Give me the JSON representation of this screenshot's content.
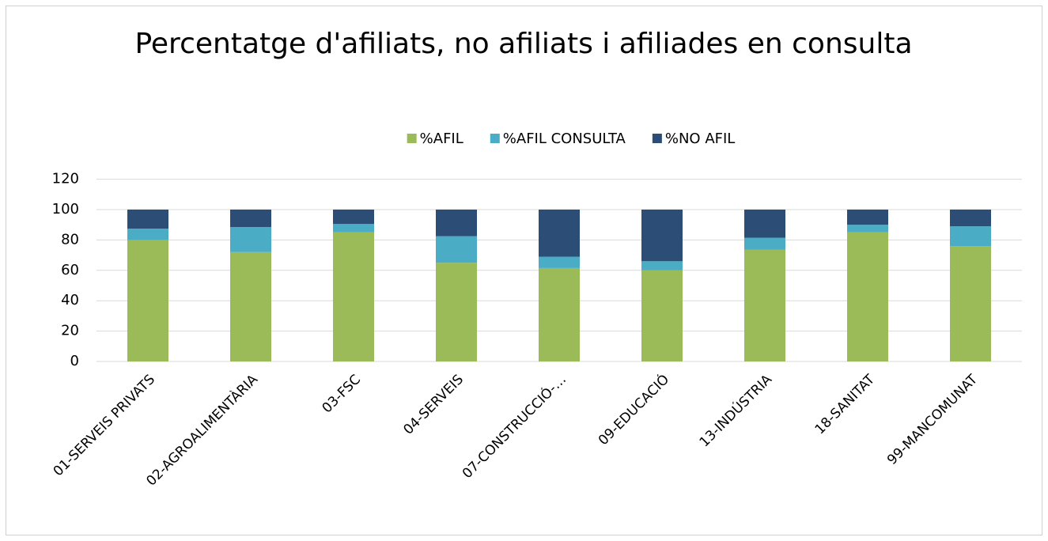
{
  "chart_data": {
    "type": "stacked_bar",
    "title": "Percentatge d'afiliats, no afiliats i afiliades en consulta",
    "categories": [
      "01-SERVEIS PRIVATS",
      "02-AGROALIMENTÀRIA",
      "03-FSC",
      "04-SERVEIS",
      "07-CONSTRUCCIÓ-…",
      "09-EDUCACIÓ",
      "13-INDÚSTRIA",
      "18-SANITAT",
      "99-MANCOMUNAT"
    ],
    "series": [
      {
        "name": "%AFIL",
        "color": "#9bbb59",
        "values": [
          80,
          72,
          85,
          65,
          61.5,
          60,
          73.5,
          85,
          76
        ]
      },
      {
        "name": "%AFIL CONSULTA",
        "color": "#4bacc6",
        "values": [
          7.5,
          16.5,
          5.5,
          17.5,
          7.5,
          6,
          8,
          5,
          13
        ]
      },
      {
        "name": "%NO AFIL",
        "color": "#2c4d75",
        "values": [
          12.5,
          11.5,
          9.5,
          17.5,
          31,
          34,
          18.5,
          10,
          11
        ]
      }
    ],
    "ylim": [
      0,
      120
    ],
    "yticks": [
      0,
      20,
      40,
      60,
      80,
      100,
      120
    ],
    "grid": true,
    "legend": "top"
  }
}
